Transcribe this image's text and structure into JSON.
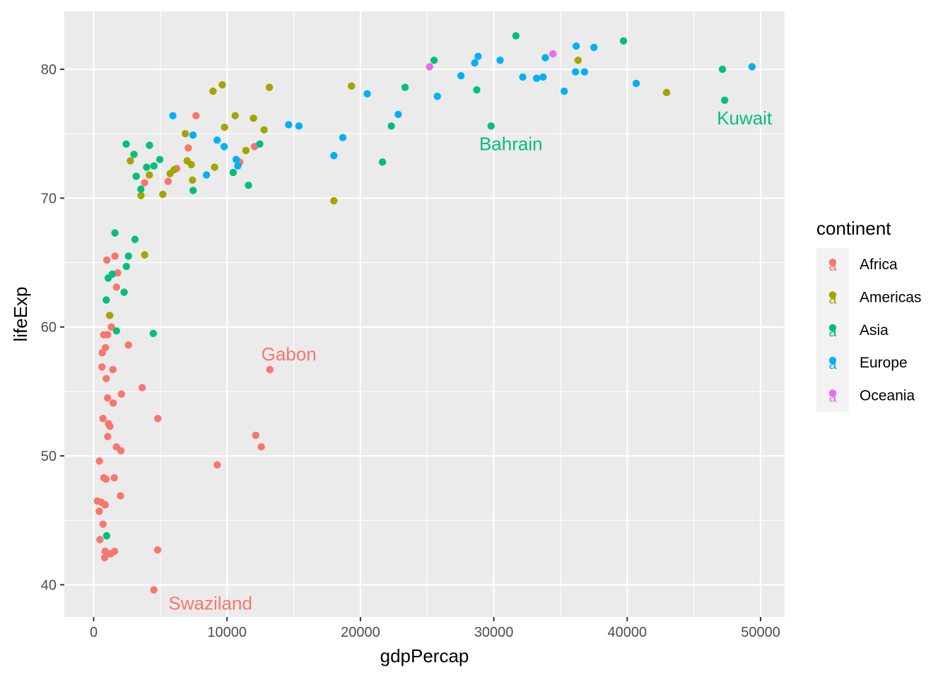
{
  "chart_data": {
    "type": "scatter",
    "xlabel": "gdpPercap",
    "ylabel": "lifeExp",
    "xlim": [
      -2200,
      51800
    ],
    "ylim": [
      37.5,
      84.5
    ],
    "xticks": [
      0,
      10000,
      20000,
      30000,
      40000,
      50000
    ],
    "xtick_labels": [
      "0",
      "10000",
      "20000",
      "30000",
      "40000",
      "50000"
    ],
    "yticks": [
      40,
      50,
      60,
      70,
      80
    ],
    "ytick_labels": [
      "40",
      "50",
      "60",
      "70",
      "80"
    ],
    "grid": true,
    "legend": {
      "title": "continent",
      "placement": "right",
      "key_glyph": "a",
      "entries": [
        {
          "name": "Africa",
          "color": "#F8766D"
        },
        {
          "name": "Americas",
          "color": "#A3A500"
        },
        {
          "name": "Asia",
          "color": "#00BF7D"
        },
        {
          "name": "Europe",
          "color": "#00B0F6"
        },
        {
          "name": "Oceania",
          "color": "#E76BF3"
        }
      ]
    },
    "annotations": [
      {
        "text": "Kuwait",
        "x": 47307,
        "y": 77.6,
        "color": "#00BF7D"
      },
      {
        "text": "Bahrain",
        "x": 29796,
        "y": 75.6,
        "color": "#00BF7D"
      },
      {
        "text": "Gabon",
        "x": 13206,
        "y": 56.7,
        "color": "#F8766D"
      },
      {
        "text": "Swaziland",
        "x": 4513,
        "y": 39.6,
        "color": "#F8766D"
      }
    ],
    "series": [
      {
        "name": "Africa",
        "color": "#F8766D",
        "points": [
          [
            6223,
            72.3
          ],
          [
            4797,
            42.7
          ],
          [
            1441,
            56.7
          ],
          [
            12570,
            50.7
          ],
          [
            1217,
            52.3
          ],
          [
            430,
            49.6
          ],
          [
            2043,
            50.4
          ],
          [
            706,
            44.7
          ],
          [
            1704,
            50.7
          ],
          [
            986,
            65.2
          ],
          [
            277,
            46.5
          ],
          [
            3633,
            55.3
          ],
          [
            1544,
            48.3
          ],
          [
            2082,
            54.8
          ],
          [
            5581,
            71.3
          ],
          [
            12154,
            51.6
          ],
          [
            641,
            58.0
          ],
          [
            691,
            52.9
          ],
          [
            13206,
            56.7
          ],
          [
            753,
            59.4
          ],
          [
            1327,
            60.0
          ],
          [
            943,
            56.0
          ],
          [
            579,
            46.4
          ],
          [
            1463,
            54.1
          ],
          [
            1569,
            42.6
          ],
          [
            415,
            45.7
          ],
          [
            12057,
            74.0
          ],
          [
            1045,
            59.4
          ],
          [
            759,
            48.3
          ],
          [
            1043,
            54.5
          ],
          [
            1803,
            64.2
          ],
          [
            10957,
            72.8
          ],
          [
            3820,
            71.2
          ],
          [
            824,
            42.1
          ],
          [
            4811,
            52.9
          ],
          [
            620,
            56.9
          ],
          [
            2014,
            46.9
          ],
          [
            7670,
            76.4
          ],
          [
            863,
            46.2
          ],
          [
            1598,
            65.5
          ],
          [
            1713,
            63.1
          ],
          [
            862,
            42.6
          ],
          [
            926,
            48.2
          ],
          [
            9270,
            49.3
          ],
          [
            2602,
            58.6
          ],
          [
            4513,
            39.6
          ],
          [
            1107,
            52.5
          ],
          [
            883,
            58.4
          ],
          [
            7093,
            73.9
          ],
          [
            1056,
            51.5
          ],
          [
            1271,
            42.4
          ],
          [
            470,
            43.5
          ]
        ]
      },
      {
        "name": "Americas",
        "color": "#A3A500",
        "points": [
          [
            12779,
            75.3
          ],
          [
            3822,
            65.6
          ],
          [
            9066,
            72.4
          ],
          [
            36319,
            80.7
          ],
          [
            13172,
            78.6
          ],
          [
            7007,
            72.9
          ],
          [
            9645,
            78.8
          ],
          [
            8948,
            78.3
          ],
          [
            6025,
            72.2
          ],
          [
            6873,
            75.0
          ],
          [
            5728,
            71.9
          ],
          [
            5186,
            70.3
          ],
          [
            1202,
            60.9
          ],
          [
            3548,
            70.2
          ],
          [
            7321,
            72.6
          ],
          [
            11978,
            76.2
          ],
          [
            2749,
            72.9
          ],
          [
            9809,
            75.5
          ],
          [
            4173,
            71.8
          ],
          [
            7409,
            71.4
          ],
          [
            19329,
            78.7
          ],
          [
            18009,
            69.8
          ],
          [
            42952,
            78.2
          ],
          [
            10611,
            76.4
          ],
          [
            11416,
            73.7
          ]
        ]
      },
      {
        "name": "Asia",
        "color": "#00BF7D",
        "points": [
          [
            975,
            43.8
          ],
          [
            29796,
            75.6
          ],
          [
            1391,
            64.1
          ],
          [
            1713,
            59.7
          ],
          [
            4959,
            73.0
          ],
          [
            39725,
            82.2
          ],
          [
            2452,
            64.7
          ],
          [
            3541,
            70.7
          ],
          [
            11606,
            71.0
          ],
          [
            4471,
            59.5
          ],
          [
            25523,
            80.7
          ],
          [
            31656,
            82.6
          ],
          [
            4519,
            72.5
          ],
          [
            1593,
            67.3
          ],
          [
            23348,
            78.6
          ],
          [
            47307,
            77.6
          ],
          [
            10461,
            72.0
          ],
          [
            12452,
            74.2
          ],
          [
            3096,
            66.8
          ],
          [
            944,
            62.1
          ],
          [
            1091,
            63.8
          ],
          [
            22316,
            75.6
          ],
          [
            2606,
            65.5
          ],
          [
            3190,
            71.7
          ],
          [
            21655,
            72.8
          ],
          [
            47143,
            80.0
          ],
          [
            3970,
            72.4
          ],
          [
            4185,
            74.1
          ],
          [
            28718,
            78.4
          ],
          [
            7458,
            70.6
          ],
          [
            2442,
            74.2
          ],
          [
            3025,
            73.4
          ],
          [
            2281,
            62.7
          ]
        ]
      },
      {
        "name": "Europe",
        "color": "#00B0F6",
        "points": [
          [
            5937,
            76.4
          ],
          [
            36126,
            79.8
          ],
          [
            33693,
            79.4
          ],
          [
            7446,
            74.9
          ],
          [
            10681,
            73.0
          ],
          [
            14619,
            75.7
          ],
          [
            22834,
            76.5
          ],
          [
            35278,
            78.3
          ],
          [
            33207,
            79.3
          ],
          [
            30470,
            80.7
          ],
          [
            32170,
            79.4
          ],
          [
            27538,
            79.5
          ],
          [
            18009,
            73.3
          ],
          [
            36181,
            81.8
          ],
          [
            40676,
            78.9
          ],
          [
            28570,
            80.5
          ],
          [
            9254,
            74.5
          ],
          [
            36798,
            79.8
          ],
          [
            49357,
            80.2
          ],
          [
            15390,
            75.6
          ],
          [
            20510,
            78.1
          ],
          [
            10808,
            72.5
          ],
          [
            9787,
            74.0
          ],
          [
            18678,
            74.7
          ],
          [
            25768,
            77.9
          ],
          [
            28821,
            81.0
          ],
          [
            33860,
            80.9
          ],
          [
            37506,
            81.7
          ],
          [
            8458,
            71.8
          ]
        ]
      },
      {
        "name": "Oceania",
        "color": "#E76BF3",
        "points": [
          [
            34435,
            81.2
          ],
          [
            25185,
            80.2
          ]
        ]
      }
    ]
  }
}
